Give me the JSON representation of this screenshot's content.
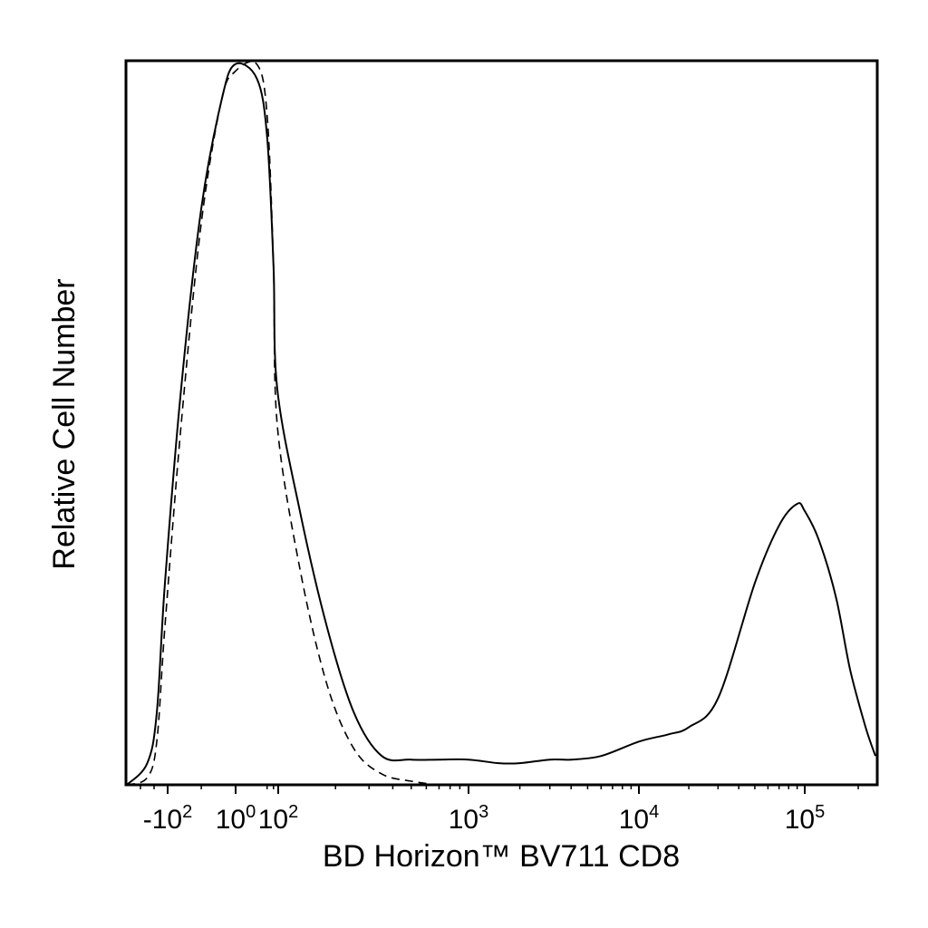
{
  "chart_data": {
    "type": "line",
    "title": "",
    "xlabel": "BD Horizon™ BV711 CD8",
    "ylabel": "Relative Cell Number",
    "x_scale": "biexponential",
    "xlim": [
      -400,
      250000
    ],
    "ylim": [
      0,
      1
    ],
    "grid": false,
    "legend": "none",
    "ticks": [
      {
        "base": "-10",
        "exp": "2",
        "value": -100
      },
      {
        "base": "10",
        "exp": "0",
        "value": 1
      },
      {
        "base": "10",
        "exp": "2",
        "value": 100
      },
      {
        "base": "10",
        "exp": "3",
        "value": 1000
      },
      {
        "base": "10",
        "exp": "4",
        "value": 10000
      },
      {
        "base": "10",
        "exp": "5",
        "value": 100000
      }
    ],
    "series": [
      {
        "style": "solid",
        "x": [
          -400,
          -250,
          -180,
          -120,
          -80,
          -50,
          -20,
          0,
          10,
          30,
          60,
          90,
          130,
          180,
          250,
          350,
          500,
          700,
          1000,
          1500,
          2000,
          3000,
          4000,
          6000,
          10000,
          15000,
          20000,
          30000,
          50000,
          70000,
          90000,
          100000,
          120000,
          150000,
          180000,
          220000,
          250000
        ],
        "y": [
          0.0,
          0.03,
          0.1,
          0.28,
          0.55,
          0.8,
          0.95,
          1.0,
          0.98,
          0.9,
          0.72,
          0.55,
          0.38,
          0.22,
          0.1,
          0.04,
          0.035,
          0.035,
          0.035,
          0.03,
          0.03,
          0.035,
          0.035,
          0.04,
          0.06,
          0.07,
          0.08,
          0.12,
          0.28,
          0.36,
          0.39,
          0.38,
          0.34,
          0.26,
          0.16,
          0.08,
          0.04
        ]
      },
      {
        "style": "dashed",
        "x": [
          -400,
          -250,
          -180,
          -120,
          -80,
          -50,
          -20,
          0,
          10,
          30,
          60,
          90,
          130,
          180,
          250,
          350,
          500,
          700,
          900
        ],
        "y": [
          0.0,
          0.01,
          0.06,
          0.22,
          0.5,
          0.78,
          0.95,
          0.99,
          1.0,
          0.93,
          0.72,
          0.5,
          0.3,
          0.14,
          0.05,
          0.015,
          0.005,
          0.0,
          0.0
        ]
      }
    ]
  }
}
